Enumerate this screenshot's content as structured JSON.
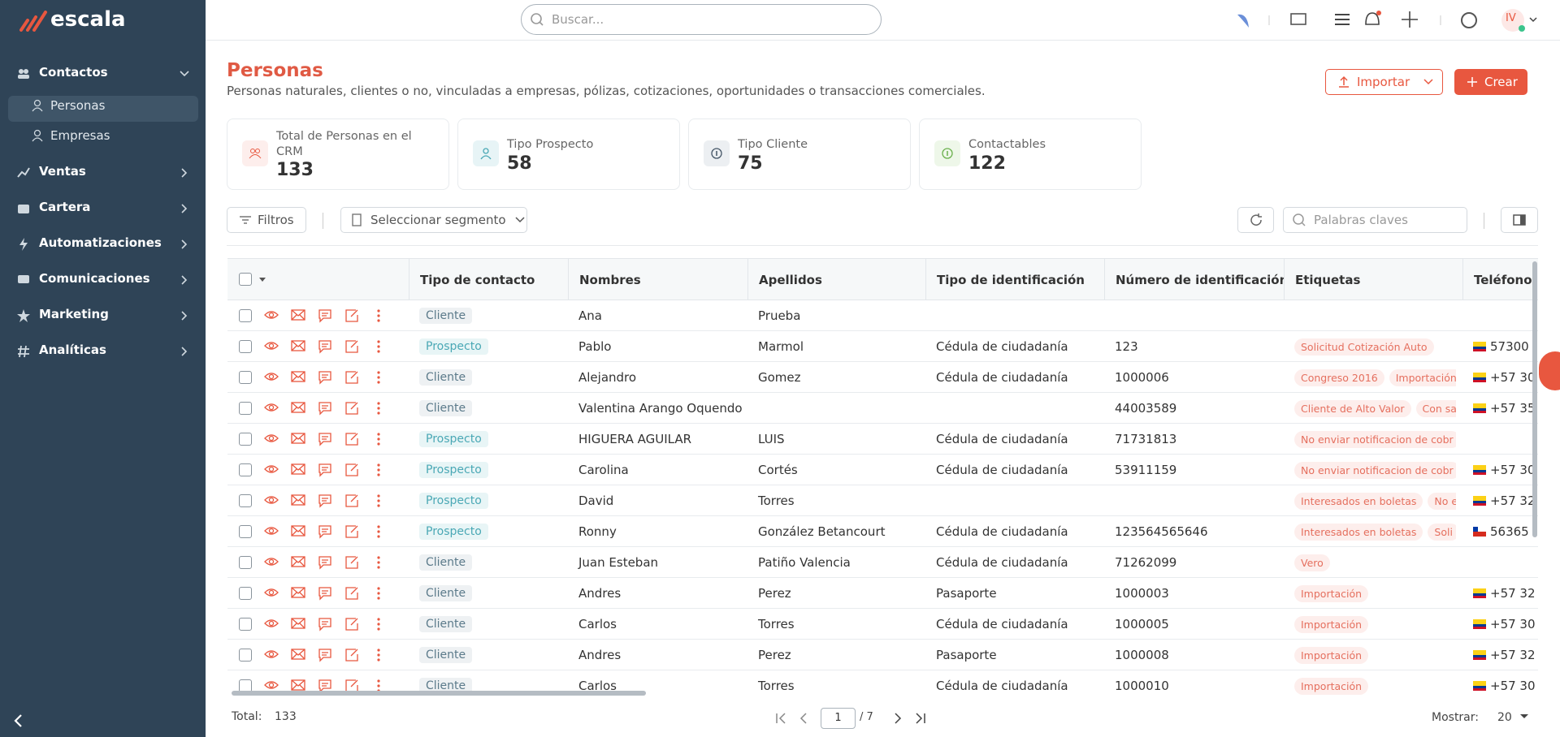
{
  "app": {
    "logo": "escala",
    "search_placeholder": "Buscar...",
    "user_initials": "IV"
  },
  "sidebar": {
    "items": [
      {
        "label": "Contactos",
        "children": [
          "Personas",
          "Empresas"
        ]
      },
      {
        "label": "Ventas"
      },
      {
        "label": "Cartera"
      },
      {
        "label": "Automatizaciones"
      },
      {
        "label": "Comunicaciones"
      },
      {
        "label": "Marketing"
      },
      {
        "label": "Analíticas"
      }
    ]
  },
  "page": {
    "title": "Personas",
    "subtitle": "Personas naturales, clientes o no, vinculadas a empresas, pólizas, cotizaciones, oportunidades o transacciones comerciales.",
    "import_button": "Importar",
    "create_button": "Crear"
  },
  "stats": [
    {
      "label": "Total de Personas en el CRM",
      "value": 133
    },
    {
      "label": "Tipo Prospecto",
      "value": 58
    },
    {
      "label": "Tipo Cliente",
      "value": 75
    },
    {
      "label": "Contactables",
      "value": 122
    }
  ],
  "toolbar": {
    "filters": "Filtros",
    "segment": "Seleccionar segmento",
    "keywords_placeholder": "Palabras claves"
  },
  "table": {
    "columns": [
      "Tipo de contacto",
      "Nombres",
      "Apellidos",
      "Tipo de identificación",
      "Número de identificación",
      "Etiquetas",
      "Teléfono"
    ],
    "rows": [
      {
        "type": "Cliente",
        "first": "Ana",
        "last": "Prueba"
      },
      {
        "type": "Prospecto",
        "first": "Pablo",
        "last": "Marmol",
        "id_type": "Cédula de ciudadanía",
        "id_number": "123",
        "tags": [
          "Solicitud Cotización Auto"
        ],
        "phone": "57300",
        "flag": "co"
      },
      {
        "type": "Cliente",
        "first": "Alejandro",
        "last": "Gomez",
        "id_type": "Cédula de ciudadanía",
        "id_number": "1000006",
        "tags": [
          "Congreso 2016",
          "Importación"
        ],
        "phone": "+57 30",
        "flag": "co"
      },
      {
        "type": "Cliente",
        "first": "Valentina Arango Oquendo",
        "id_number": "44003589",
        "tags": [
          "Cliente de Alto Valor",
          "Con sa"
        ],
        "phone": "+57 35",
        "flag": "co"
      },
      {
        "type": "Prospecto",
        "first": "HIGUERA AGUILAR",
        "last": "LUIS",
        "id_type": "Cédula de ciudadanía",
        "id_number": "71731813",
        "tags": [
          "No enviar notificacion de cobr"
        ]
      },
      {
        "type": "Prospecto",
        "first": "Carolina",
        "last": "Cortés",
        "id_type": "Cédula de ciudadanía",
        "id_number": "53911159",
        "tags": [
          "No enviar notificacion de cobr"
        ],
        "phone": "+57 30",
        "flag": "co"
      },
      {
        "type": "Prospecto",
        "first": "David",
        "last": "Torres",
        "tags": [
          "Interesados en boletas",
          "No e"
        ],
        "phone": "+57 32",
        "flag": "co"
      },
      {
        "type": "Prospecto",
        "first": "Ronny",
        "last": "González Betancourt",
        "id_type": "Cédula de ciudadanía",
        "id_number": "123564565646",
        "tags": [
          "Interesados en boletas",
          "Soli"
        ],
        "phone": "56365",
        "flag": "cl"
      },
      {
        "type": "Cliente",
        "first": "Juan Esteban",
        "last": "Patiño Valencia",
        "id_type": "Cédula de ciudadanía",
        "id_number": "71262099",
        "tags": [
          "Vero"
        ]
      },
      {
        "type": "Cliente",
        "first": "Andres",
        "last": "Perez",
        "id_type": "Pasaporte",
        "id_number": "1000003",
        "tags": [
          "Importación"
        ],
        "phone": "+57 32",
        "flag": "co"
      },
      {
        "type": "Cliente",
        "first": "Carlos",
        "last": "Torres",
        "id_type": "Cédula de ciudadanía",
        "id_number": "1000005",
        "tags": [
          "Importación"
        ],
        "phone": "+57 30",
        "flag": "co"
      },
      {
        "type": "Cliente",
        "first": "Andres",
        "last": "Perez",
        "id_type": "Pasaporte",
        "id_number": "1000008",
        "tags": [
          "Importación"
        ],
        "phone": "+57 32",
        "flag": "co"
      },
      {
        "type": "Cliente",
        "first": "Carlos",
        "last": "Torres",
        "id_type": "Cédula de ciudadanía",
        "id_number": "1000010",
        "tags": [
          "Importación"
        ],
        "phone": "+57 30",
        "flag": "co"
      }
    ]
  },
  "footer": {
    "total_label": "Total:",
    "total": 133,
    "page": 1,
    "pages_label": "/ 7",
    "show_label": "Mostrar:",
    "page_size": 20
  }
}
